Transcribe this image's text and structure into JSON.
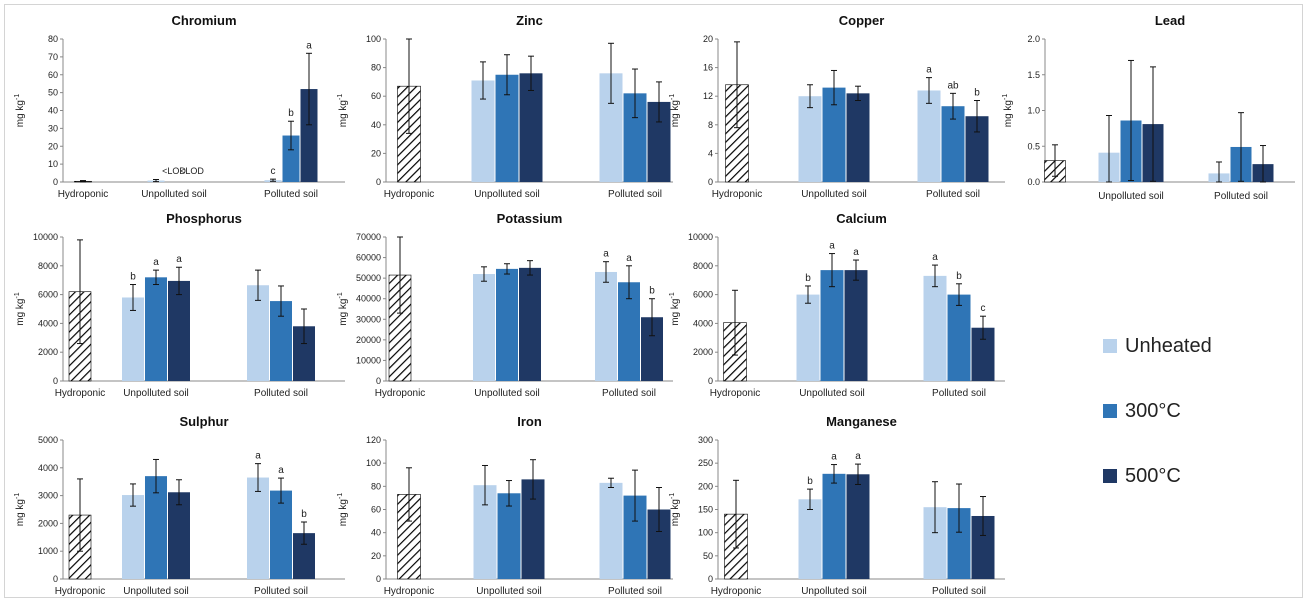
{
  "legend": {
    "items": [
      {
        "label": "Unheated",
        "color": "#b9d2ec"
      },
      {
        "label": "300°C",
        "color": "#2f75b6"
      },
      {
        "label": "500°C",
        "color": "#1f3864"
      }
    ]
  },
  "chart_data": [
    {
      "type": "bar",
      "title": "Chromium",
      "ylabel": "mg kg-1",
      "ylim": [
        0,
        80
      ],
      "yticks": [
        0,
        10,
        20,
        30,
        40,
        50,
        60,
        70,
        80
      ],
      "groups": [
        {
          "label": "Hydroponic",
          "bars": [
            {
              "series": "Hydroponic",
              "value": 0.4,
              "err": 0.4,
              "sig": ""
            }
          ]
        },
        {
          "label": "Unpolluted soil",
          "bars": [
            {
              "series": "Unheated",
              "value": 0.8,
              "err": 0.6,
              "sig": ""
            },
            {
              "series": "300°C",
              "value": null,
              "err": 0,
              "sig": "<LOD"
            },
            {
              "series": "500°C",
              "value": null,
              "err": 0,
              "sig": "<LOD"
            }
          ]
        },
        {
          "label": "Polluted soil",
          "bars": [
            {
              "series": "Unheated",
              "value": 1,
              "err": 0.6,
              "sig": "c"
            },
            {
              "series": "300°C",
              "value": 26,
              "err": 8,
              "sig": "b"
            },
            {
              "series": "500°C",
              "value": 52,
              "err": 20,
              "sig": "a"
            }
          ]
        }
      ]
    },
    {
      "type": "bar",
      "title": "Zinc",
      "ylabel": "mg kg-1",
      "ylim": [
        0,
        100
      ],
      "yticks": [
        0,
        20,
        40,
        60,
        80,
        100
      ],
      "groups": [
        {
          "label": "Hydroponic",
          "bars": [
            {
              "series": "Hydroponic",
              "value": 67,
              "err": 33,
              "sig": ""
            }
          ]
        },
        {
          "label": "Unpolluted soil",
          "bars": [
            {
              "series": "Unheated",
              "value": 71,
              "err": 13,
              "sig": ""
            },
            {
              "series": "300°C",
              "value": 75,
              "err": 14,
              "sig": ""
            },
            {
              "series": "500°C",
              "value": 76,
              "err": 12,
              "sig": ""
            }
          ]
        },
        {
          "label": "Polluted soil",
          "bars": [
            {
              "series": "Unheated",
              "value": 76,
              "err": 21,
              "sig": ""
            },
            {
              "series": "300°C",
              "value": 62,
              "err": 17,
              "sig": ""
            },
            {
              "series": "500°C",
              "value": 56,
              "err": 14,
              "sig": ""
            }
          ]
        }
      ]
    },
    {
      "type": "bar",
      "title": "Copper",
      "ylabel": "mg kg-1",
      "ylim": [
        0,
        20
      ],
      "yticks": [
        0,
        4,
        8,
        12,
        16,
        20
      ],
      "groups": [
        {
          "label": "Hydroponic",
          "bars": [
            {
              "series": "Hydroponic",
              "value": 13.6,
              "err": 6,
              "sig": ""
            }
          ]
        },
        {
          "label": "Unpolluted soil",
          "bars": [
            {
              "series": "Unheated",
              "value": 12,
              "err": 1.6,
              "sig": ""
            },
            {
              "series": "300°C",
              "value": 13.2,
              "err": 2.4,
              "sig": ""
            },
            {
              "series": "500°C",
              "value": 12.4,
              "err": 1,
              "sig": ""
            }
          ]
        },
        {
          "label": "Polluted soil",
          "bars": [
            {
              "series": "Unheated",
              "value": 12.8,
              "err": 1.8,
              "sig": "a"
            },
            {
              "series": "300°C",
              "value": 10.6,
              "err": 1.8,
              "sig": "ab"
            },
            {
              "series": "500°C",
              "value": 9.2,
              "err": 2.2,
              "sig": "b"
            }
          ]
        }
      ]
    },
    {
      "type": "bar",
      "title": "Lead",
      "ylabel": "mg kg-1",
      "ylim": [
        0,
        2.0
      ],
      "yticks": [
        "0.0",
        "0.5",
        "1.0",
        "1.5",
        "2.0"
      ],
      "groups": [
        {
          "label": "",
          "bars": [
            {
              "series": "Hydroponic",
              "value": 0.3,
              "err": 0.22,
              "sig": ""
            }
          ]
        },
        {
          "label": "Unpolluted soil",
          "bars": [
            {
              "series": "Unheated",
              "value": 0.41,
              "err": 0.52,
              "sig": ""
            },
            {
              "series": "300°C",
              "value": 0.86,
              "err": 0.84,
              "sig": ""
            },
            {
              "series": "500°C",
              "value": 0.81,
              "err": 0.8,
              "sig": ""
            }
          ]
        },
        {
          "label": "Polluted soil",
          "bars": [
            {
              "series": "Unheated",
              "value": 0.12,
              "err": 0.16,
              "sig": ""
            },
            {
              "series": "300°C",
              "value": 0.49,
              "err": 0.48,
              "sig": ""
            },
            {
              "series": "500°C",
              "value": 0.25,
              "err": 0.26,
              "sig": ""
            }
          ]
        }
      ]
    },
    {
      "type": "bar",
      "title": "Phosphorus",
      "ylabel": "mg kg-1",
      "ylim": [
        0,
        10000
      ],
      "yticks": [
        0,
        2000,
        4000,
        6000,
        8000,
        10000
      ],
      "groups": [
        {
          "label": "Hydroponic",
          "bars": [
            {
              "series": "Hydroponic",
              "value": 6200,
              "err": 3600,
              "sig": ""
            }
          ]
        },
        {
          "label": "Unpolluted soil",
          "bars": [
            {
              "series": "Unheated",
              "value": 5800,
              "err": 900,
              "sig": "b"
            },
            {
              "series": "300°C",
              "value": 7200,
              "err": 500,
              "sig": "a"
            },
            {
              "series": "500°C",
              "value": 6950,
              "err": 950,
              "sig": "a"
            }
          ]
        },
        {
          "label": "Polluted soil",
          "bars": [
            {
              "series": "Unheated",
              "value": 6650,
              "err": 1050,
              "sig": ""
            },
            {
              "series": "300°C",
              "value": 5550,
              "err": 1050,
              "sig": ""
            },
            {
              "series": "500°C",
              "value": 3800,
              "err": 1200,
              "sig": ""
            }
          ]
        }
      ]
    },
    {
      "type": "bar",
      "title": "Potassium",
      "ylabel": "mg kg-1",
      "ylim": [
        0,
        70000
      ],
      "yticks": [
        0,
        10000,
        20000,
        30000,
        40000,
        50000,
        60000,
        70000
      ],
      "groups": [
        {
          "label": "Hydroponic",
          "bars": [
            {
              "series": "Hydroponic",
              "value": 51500,
              "err": 18500,
              "sig": ""
            }
          ]
        },
        {
          "label": "Unpolluted soil",
          "bars": [
            {
              "series": "Unheated",
              "value": 52000,
              "err": 3500,
              "sig": ""
            },
            {
              "series": "300°C",
              "value": 54500,
              "err": 2500,
              "sig": ""
            },
            {
              "series": "500°C",
              "value": 55000,
              "err": 3500,
              "sig": ""
            }
          ]
        },
        {
          "label": "Polluted soil",
          "bars": [
            {
              "series": "Unheated",
              "value": 53000,
              "err": 5000,
              "sig": "a"
            },
            {
              "series": "300°C",
              "value": 48000,
              "err": 8000,
              "sig": "a"
            },
            {
              "series": "500°C",
              "value": 31000,
              "err": 9000,
              "sig": "b"
            }
          ]
        }
      ]
    },
    {
      "type": "bar",
      "title": "Calcium",
      "ylabel": "mg kg-1",
      "ylim": [
        0,
        10000
      ],
      "yticks": [
        0,
        2000,
        4000,
        6000,
        8000,
        10000
      ],
      "groups": [
        {
          "label": "Hydroponic",
          "bars": [
            {
              "series": "Hydroponic",
              "value": 4050,
              "err": 2250,
              "sig": ""
            }
          ]
        },
        {
          "label": "Unpolluted soil",
          "bars": [
            {
              "series": "Unheated",
              "value": 6000,
              "err": 600,
              "sig": "b"
            },
            {
              "series": "300°C",
              "value": 7700,
              "err": 1150,
              "sig": "a"
            },
            {
              "series": "500°C",
              "value": 7700,
              "err": 700,
              "sig": "a"
            }
          ]
        },
        {
          "label": "Polluted soil",
          "bars": [
            {
              "series": "Unheated",
              "value": 7300,
              "err": 750,
              "sig": "a"
            },
            {
              "series": "300°C",
              "value": 6000,
              "err": 750,
              "sig": "b"
            },
            {
              "series": "500°C",
              "value": 3700,
              "err": 800,
              "sig": "c"
            }
          ]
        }
      ]
    },
    {
      "type": "bar",
      "title": "Sulphur",
      "ylabel": "mg kg-1",
      "ylim": [
        0,
        5000
      ],
      "yticks": [
        0,
        1000,
        2000,
        3000,
        4000,
        5000
      ],
      "groups": [
        {
          "label": "Hydroponic",
          "bars": [
            {
              "series": "Hydroponic",
              "value": 2300,
              "err": 1300,
              "sig": ""
            }
          ]
        },
        {
          "label": "Unpolluted soil",
          "bars": [
            {
              "series": "Unheated",
              "value": 3020,
              "err": 400,
              "sig": ""
            },
            {
              "series": "300°C",
              "value": 3700,
              "err": 600,
              "sig": ""
            },
            {
              "series": "500°C",
              "value": 3120,
              "err": 450,
              "sig": ""
            }
          ]
        },
        {
          "label": "Polluted soil",
          "bars": [
            {
              "series": "Unheated",
              "value": 3650,
              "err": 500,
              "sig": "a"
            },
            {
              "series": "300°C",
              "value": 3180,
              "err": 450,
              "sig": "a"
            },
            {
              "series": "500°C",
              "value": 1650,
              "err": 400,
              "sig": "b"
            }
          ]
        }
      ]
    },
    {
      "type": "bar",
      "title": "Iron",
      "ylabel": "mg kg-1",
      "ylim": [
        0,
        120
      ],
      "yticks": [
        0,
        20,
        40,
        60,
        80,
        100,
        120
      ],
      "groups": [
        {
          "label": "Hydroponic",
          "bars": [
            {
              "series": "Hydroponic",
              "value": 73,
              "err": 23,
              "sig": ""
            }
          ]
        },
        {
          "label": "Unpolluted soil",
          "bars": [
            {
              "series": "Unheated",
              "value": 81,
              "err": 17,
              "sig": ""
            },
            {
              "series": "300°C",
              "value": 74,
              "err": 11,
              "sig": ""
            },
            {
              "series": "500°C",
              "value": 86,
              "err": 17,
              "sig": ""
            }
          ]
        },
        {
          "label": "Polluted soil",
          "bars": [
            {
              "series": "Unheated",
              "value": 83,
              "err": 4,
              "sig": ""
            },
            {
              "series": "300°C",
              "value": 72,
              "err": 22,
              "sig": ""
            },
            {
              "series": "500°C",
              "value": 60,
              "err": 19,
              "sig": ""
            }
          ]
        }
      ]
    },
    {
      "type": "bar",
      "title": "Manganese",
      "ylabel": "mg kg-1",
      "ylim": [
        0,
        300
      ],
      "yticks": [
        0,
        50,
        100,
        150,
        200,
        250,
        300
      ],
      "groups": [
        {
          "label": "Hydroponic",
          "bars": [
            {
              "series": "Hydroponic",
              "value": 140,
              "err": 73,
              "sig": ""
            }
          ]
        },
        {
          "label": "Unpolluted soil",
          "bars": [
            {
              "series": "Unheated",
              "value": 172,
              "err": 22,
              "sig": "b"
            },
            {
              "series": "300°C",
              "value": 227,
              "err": 20,
              "sig": "a"
            },
            {
              "series": "500°C",
              "value": 226,
              "err": 22,
              "sig": "a"
            }
          ]
        },
        {
          "label": "Polluted soil",
          "bars": [
            {
              "series": "Unheated",
              "value": 155,
              "err": 55,
              "sig": ""
            },
            {
              "series": "300°C",
              "value": 153,
              "err": 52,
              "sig": ""
            },
            {
              "series": "500°C",
              "value": 136,
              "err": 42,
              "sig": ""
            }
          ]
        }
      ]
    }
  ]
}
